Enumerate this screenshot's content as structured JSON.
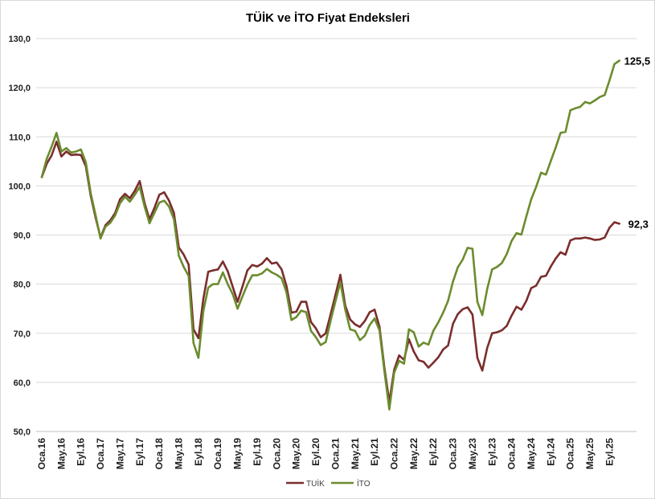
{
  "chart_data": {
    "type": "line",
    "title": "TÜİK ve İTO Fiyat Endeksleri",
    "ylim": [
      50,
      130
    ],
    "y_step": 10,
    "y_ticks": [
      "50,0",
      "60,0",
      "70,0",
      "80,0",
      "90,0",
      "100,0",
      "110,0",
      "120,0",
      "130,0"
    ],
    "x_tick_step": 4,
    "x_ticks": [
      "Oca.16",
      "May.16",
      "Eyl.16",
      "Oca.17",
      "May.17",
      "Eyl.17",
      "Oca.18",
      "May.18",
      "Eyl.18",
      "Oca.19",
      "May.19",
      "Eyl.19",
      "Oca.20",
      "May.20",
      "Eyl.20",
      "Oca.21",
      "May.21",
      "Eyl.21",
      "Oca.22",
      "May.22",
      "Eyl.22",
      "Oca.23",
      "May.23",
      "Eyl.23",
      "Oca.24",
      "May.24",
      "Eyl.24",
      "Oca.25",
      "May.25",
      "Eyl.25"
    ],
    "grid": true,
    "series": [
      {
        "name": "TUİK",
        "color": "#7b2d2d",
        "end_label": "92,3",
        "values": [
          101.8,
          104.5,
          106.2,
          109.0,
          106.0,
          107.0,
          106.3,
          106.4,
          106.3,
          104.0,
          98.0,
          93.5,
          89.5,
          92.0,
          93.0,
          94.5,
          97.3,
          98.4,
          97.5,
          99.0,
          101.0,
          96.5,
          93.2,
          95.5,
          98.2,
          98.7,
          97.0,
          94.5,
          87.5,
          86.0,
          84.0,
          70.8,
          69.0,
          77.0,
          82.5,
          82.8,
          83.0,
          84.6,
          82.6,
          79.5,
          76.4,
          79.5,
          82.8,
          83.9,
          83.6,
          84.2,
          85.3,
          84.2,
          84.4,
          83.0,
          79.6,
          74.2,
          74.4,
          76.4,
          76.4,
          72.3,
          71.0,
          69.2,
          70.0,
          73.8,
          77.8,
          81.9,
          75.6,
          72.8,
          71.8,
          71.3,
          72.5,
          74.3,
          74.8,
          71.3,
          63.0,
          56.0,
          62.6,
          65.5,
          64.6,
          68.8,
          66.3,
          64.5,
          64.2,
          63.0,
          64.0,
          65.1,
          66.7,
          67.5,
          71.9,
          73.9,
          74.9,
          75.3,
          73.8,
          65.0,
          62.4,
          67.0,
          70.0,
          70.2,
          70.6,
          71.5,
          73.6,
          75.4,
          74.8,
          76.6,
          79.2,
          79.7,
          81.5,
          81.7,
          83.6,
          85.2,
          86.5,
          86.0,
          88.9,
          89.3,
          89.3,
          89.5,
          89.3,
          89.0,
          89.1,
          89.5,
          91.5,
          92.6,
          92.3
        ]
      },
      {
        "name": "İTO",
        "color": "#6b8c2e",
        "end_label": "125,5",
        "values": [
          101.8,
          105.5,
          108.0,
          110.8,
          107.0,
          107.7,
          106.8,
          107.0,
          107.4,
          104.8,
          98.5,
          94.0,
          89.3,
          91.7,
          92.5,
          94.0,
          96.5,
          97.8,
          96.8,
          98.2,
          99.8,
          95.8,
          92.4,
          94.5,
          96.6,
          97.0,
          95.8,
          93.2,
          85.8,
          83.5,
          81.7,
          68.0,
          65.0,
          74.5,
          79.3,
          80.0,
          80.0,
          82.4,
          80.0,
          78.0,
          75.0,
          77.5,
          79.9,
          81.8,
          81.8,
          82.2,
          83.1,
          82.4,
          81.9,
          81.2,
          78.3,
          72.7,
          73.3,
          74.6,
          74.3,
          70.5,
          69.2,
          67.6,
          68.2,
          72.5,
          76.5,
          80.4,
          74.8,
          70.8,
          70.5,
          68.6,
          69.5,
          71.7,
          73.0,
          70.6,
          62.3,
          54.5,
          62.0,
          64.4,
          63.8,
          70.8,
          70.2,
          67.3,
          68.1,
          67.7,
          70.5,
          72.2,
          74.2,
          76.6,
          80.5,
          83.4,
          85.0,
          87.4,
          87.2,
          76.4,
          73.7,
          79.0,
          83.0,
          83.5,
          84.3,
          86.1,
          88.8,
          90.4,
          90.1,
          93.8,
          97.3,
          99.8,
          102.7,
          102.3,
          105.1,
          107.8,
          110.8,
          111.0,
          115.4,
          115.8,
          116.1,
          117.1,
          116.8,
          117.4,
          118.1,
          118.5,
          121.5,
          124.8,
          125.5
        ]
      }
    ]
  }
}
